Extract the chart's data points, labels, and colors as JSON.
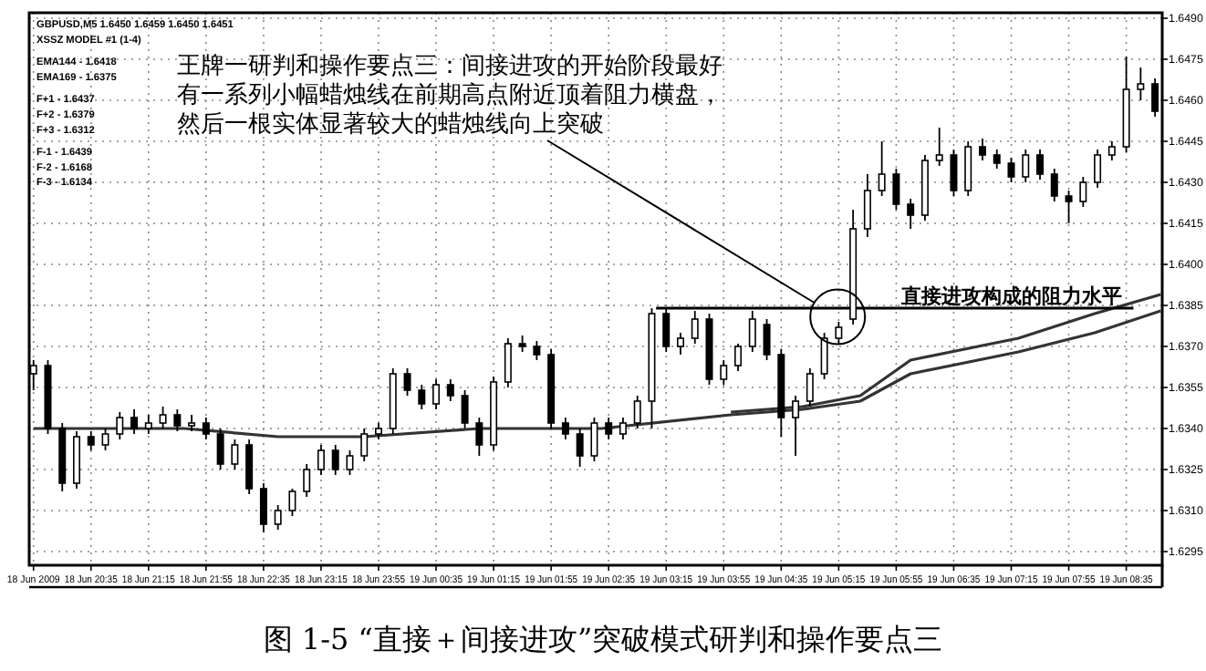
{
  "chart_data": {
    "type": "candlestick",
    "title": "图 1-5 “直接＋间接进攻”突破模式研判和操作要点三",
    "x": [
      "2009-06-18T19:55",
      "2009-06-18T20:05",
      "2009-06-18T20:15",
      "2009-06-18T20:25",
      "2009-06-18T20:35",
      "2009-06-18T20:45",
      "2009-06-18T20:55",
      "2009-06-18T21:05",
      "2009-06-18T21:15",
      "2009-06-18T21:25",
      "2009-06-18T21:35",
      "2009-06-18T21:45",
      "2009-06-18T21:55",
      "2009-06-18T22:05",
      "2009-06-18T22:15",
      "2009-06-18T22:25",
      "2009-06-18T22:35",
      "2009-06-18T22:45",
      "2009-06-18T22:55",
      "2009-06-18T23:05",
      "2009-06-18T23:15",
      "2009-06-18T23:25",
      "2009-06-18T23:35",
      "2009-06-18T23:45",
      "2009-06-18T23:55",
      "2009-06-19T00:05",
      "2009-06-19T00:15",
      "2009-06-19T00:25",
      "2009-06-19T00:35",
      "2009-06-19T00:45",
      "2009-06-19T00:55",
      "2009-06-19T01:05",
      "2009-06-19T01:15",
      "2009-06-19T01:25",
      "2009-06-19T01:35",
      "2009-06-19T01:45",
      "2009-06-19T01:55",
      "2009-06-19T02:05",
      "2009-06-19T02:15",
      "2009-06-19T02:25",
      "2009-06-19T02:35",
      "2009-06-19T02:45",
      "2009-06-19T02:55",
      "2009-06-19T03:05",
      "2009-06-19T03:15",
      "2009-06-19T03:25",
      "2009-06-19T03:35",
      "2009-06-19T03:45",
      "2009-06-19T03:55",
      "2009-06-19T04:05",
      "2009-06-19T04:15",
      "2009-06-19T04:25",
      "2009-06-19T04:35",
      "2009-06-19T04:45",
      "2009-06-19T04:55",
      "2009-06-19T05:05",
      "2009-06-19T05:15",
      "2009-06-19T05:25",
      "2009-06-19T05:35",
      "2009-06-19T05:45",
      "2009-06-19T05:55",
      "2009-06-19T06:05",
      "2009-06-19T06:15",
      "2009-06-19T06:25",
      "2009-06-19T06:35",
      "2009-06-19T06:45",
      "2009-06-19T06:55",
      "2009-06-19T07:05",
      "2009-06-19T07:15",
      "2009-06-19T07:25",
      "2009-06-19T07:35",
      "2009-06-19T07:45",
      "2009-06-19T07:55",
      "2009-06-19T08:05",
      "2009-06-19T08:15",
      "2009-06-19T08:25",
      "2009-06-19T08:35",
      "2009-06-19T08:45",
      "2009-06-19T08:55"
    ],
    "ohlc": [
      [
        1.636,
        1.6365,
        1.6354,
        1.6363
      ],
      [
        1.6363,
        1.6365,
        1.6338,
        1.634
      ],
      [
        1.634,
        1.6342,
        1.6317,
        1.632
      ],
      [
        1.632,
        1.6339,
        1.6318,
        1.6337
      ],
      [
        1.6337,
        1.6339,
        1.6332,
        1.6334
      ],
      [
        1.6334,
        1.634,
        1.6332,
        1.6338
      ],
      [
        1.6338,
        1.6346,
        1.6336,
        1.6344
      ],
      [
        1.6344,
        1.6347,
        1.6338,
        1.634
      ],
      [
        1.634,
        1.6345,
        1.6338,
        1.6342
      ],
      [
        1.6342,
        1.6348,
        1.634,
        1.6345
      ],
      [
        1.6345,
        1.6347,
        1.6339,
        1.6341
      ],
      [
        1.6341,
        1.6345,
        1.6339,
        1.6342
      ],
      [
        1.6342,
        1.6344,
        1.6336,
        1.6338
      ],
      [
        1.6338,
        1.634,
        1.6325,
        1.6327
      ],
      [
        1.6327,
        1.6336,
        1.6325,
        1.6334
      ],
      [
        1.6334,
        1.6336,
        1.6316,
        1.6318
      ],
      [
        1.6318,
        1.632,
        1.6302,
        1.6305
      ],
      [
        1.6305,
        1.6312,
        1.6303,
        1.631
      ],
      [
        1.631,
        1.6318,
        1.6308,
        1.6317
      ],
      [
        1.6317,
        1.6327,
        1.6315,
        1.6325
      ],
      [
        1.6325,
        1.6334,
        1.6323,
        1.6332
      ],
      [
        1.6332,
        1.6334,
        1.6323,
        1.6325
      ],
      [
        1.6325,
        1.6332,
        1.6323,
        1.633
      ],
      [
        1.633,
        1.634,
        1.6328,
        1.6338
      ],
      [
        1.6338,
        1.6342,
        1.6336,
        1.634
      ],
      [
        1.634,
        1.6362,
        1.6338,
        1.636
      ],
      [
        1.636,
        1.6362,
        1.6352,
        1.6354
      ],
      [
        1.6354,
        1.6356,
        1.6347,
        1.6349
      ],
      [
        1.6349,
        1.6358,
        1.6347,
        1.6356
      ],
      [
        1.6356,
        1.6358,
        1.635,
        1.6352
      ],
      [
        1.6352,
        1.6354,
        1.634,
        1.6342
      ],
      [
        1.6342,
        1.6344,
        1.633,
        1.6334
      ],
      [
        1.6334,
        1.6359,
        1.6332,
        1.6357
      ],
      [
        1.6357,
        1.6373,
        1.6355,
        1.6371
      ],
      [
        1.6371,
        1.6374,
        1.6368,
        1.637
      ],
      [
        1.637,
        1.6372,
        1.6365,
        1.6367
      ],
      [
        1.6367,
        1.6369,
        1.634,
        1.6342
      ],
      [
        1.6342,
        1.6344,
        1.6336,
        1.6338
      ],
      [
        1.6338,
        1.634,
        1.6326,
        1.633
      ],
      [
        1.633,
        1.6344,
        1.6328,
        1.6342
      ],
      [
        1.6342,
        1.6344,
        1.6336,
        1.6338
      ],
      [
        1.6338,
        1.6344,
        1.6336,
        1.6342
      ],
      [
        1.6342,
        1.6352,
        1.634,
        1.635
      ],
      [
        1.635,
        1.6384,
        1.634,
        1.6382
      ],
      [
        1.6382,
        1.6384,
        1.6368,
        1.637
      ],
      [
        1.637,
        1.6375,
        1.6367,
        1.6373
      ],
      [
        1.6373,
        1.6383,
        1.6371,
        1.638
      ],
      [
        1.638,
        1.6382,
        1.6356,
        1.6358
      ],
      [
        1.6358,
        1.6365,
        1.6356,
        1.6363
      ],
      [
        1.6363,
        1.6371,
        1.6361,
        1.637
      ],
      [
        1.637,
        1.6383,
        1.6368,
        1.638
      ],
      [
        1.6378,
        1.638,
        1.6365,
        1.6367
      ],
      [
        1.6367,
        1.6369,
        1.6337,
        1.6344
      ],
      [
        1.6344,
        1.6352,
        1.633,
        1.635
      ],
      [
        1.635,
        1.6362,
        1.6348,
        1.636
      ],
      [
        1.636,
        1.6375,
        1.6358,
        1.6373
      ],
      [
        1.6373,
        1.6379,
        1.6371,
        1.6377
      ],
      [
        1.638,
        1.642,
        1.6378,
        1.6413
      ],
      [
        1.6413,
        1.6433,
        1.641,
        1.6427
      ],
      [
        1.6427,
        1.6445,
        1.6425,
        1.6433
      ],
      [
        1.6433,
        1.6435,
        1.642,
        1.6422
      ],
      [
        1.6422,
        1.6424,
        1.6413,
        1.6418
      ],
      [
        1.6418,
        1.644,
        1.6416,
        1.6438
      ],
      [
        1.6438,
        1.645,
        1.6436,
        1.644
      ],
      [
        1.644,
        1.6442,
        1.6425,
        1.6427
      ],
      [
        1.6427,
        1.6445,
        1.6425,
        1.6443
      ],
      [
        1.6443,
        1.6446,
        1.6438,
        1.644
      ],
      [
        1.644,
        1.6442,
        1.6435,
        1.6437
      ],
      [
        1.6437,
        1.6439,
        1.643,
        1.6432
      ],
      [
        1.6432,
        1.6442,
        1.643,
        1.644
      ],
      [
        1.644,
        1.6442,
        1.6431,
        1.6433
      ],
      [
        1.6433,
        1.6435,
        1.6423,
        1.6425
      ],
      [
        1.6425,
        1.6427,
        1.6415,
        1.6423
      ],
      [
        1.6423,
        1.6432,
        1.6421,
        1.643
      ],
      [
        1.643,
        1.6442,
        1.6428,
        1.644
      ],
      [
        1.644,
        1.6445,
        1.6438,
        1.6443
      ],
      [
        1.6443,
        1.6476,
        1.6441,
        1.6464
      ],
      [
        1.6464,
        1.6472,
        1.646,
        1.6466
      ],
      [
        1.6466,
        1.6468,
        1.6454,
        1.6456
      ]
    ],
    "series": [
      {
        "type": "line",
        "color": "#333333",
        "x": [
          "2009-06-18T19:55",
          "2009-06-18T21:40",
          "2009-06-18T22:45",
          "2009-06-18T23:45",
          "2009-06-19T01:05",
          "2009-06-19T02:30",
          "2009-06-19T04:00",
          "2009-06-19T04:50",
          "2009-06-19T05:30",
          "2009-06-19T06:05",
          "2009-06-19T07:20",
          "2009-06-19T08:13",
          "2009-06-19T08:59"
        ],
        "values": [
          1.634,
          1.634,
          1.6337,
          1.6337,
          1.634,
          1.634,
          1.6345,
          1.6347,
          1.635,
          1.636,
          1.6368,
          1.6375,
          1.6383
        ]
      },
      {
        "type": "line",
        "color": "#333333",
        "x": [
          "2009-06-19T04:00",
          "2009-06-19T04:50",
          "2009-06-19T05:30",
          "2009-06-19T06:05",
          "2009-06-19T07:20",
          "2009-06-19T08:13",
          "2009-06-19T08:59"
        ],
        "values": [
          1.6346,
          1.6348,
          1.6352,
          1.6365,
          1.6373,
          1.6382,
          1.6389
        ]
      },
      {
        "type": "line",
        "color": "#000000",
        "x": [
          "2009-06-19T03:08",
          "2009-06-19T08:40"
        ],
        "values": [
          1.6384,
          1.6384
        ]
      }
    ],
    "xlim": [
      "2009-06-18T19:52",
      "2009-06-19T09:00"
    ],
    "xticks": [
      {
        "value": "2009-06-18T19:55",
        "label": "18 Jun 2009"
      },
      {
        "value": "2009-06-18T20:35",
        "label": "18 Jun 20:35"
      },
      {
        "value": "2009-06-18T21:15",
        "label": "18 Jun 21:15"
      },
      {
        "value": "2009-06-18T21:55",
        "label": "18 Jun 21:55"
      },
      {
        "value": "2009-06-18T22:35",
        "label": "18 Jun 22:35"
      },
      {
        "value": "2009-06-18T23:15",
        "label": "18 Jun 23:15"
      },
      {
        "value": "2009-06-18T23:55",
        "label": "18 Jun 23:55"
      },
      {
        "value": "2009-06-19T00:35",
        "label": "19 Jun 00:35"
      },
      {
        "value": "2009-06-19T01:15",
        "label": "19 Jun 01:15"
      },
      {
        "value": "2009-06-19T01:55",
        "label": "19 Jun 01:55"
      },
      {
        "value": "2009-06-19T02:35",
        "label": "19 Jun 02:35"
      },
      {
        "value": "2009-06-19T03:15",
        "label": "19 Jun 03:15"
      },
      {
        "value": "2009-06-19T03:55",
        "label": "19 Jun 03:55"
      },
      {
        "value": "2009-06-19T04:35",
        "label": "19 Jun 04:35"
      },
      {
        "value": "2009-06-19T05:15",
        "label": "19 Jun 05:15"
      },
      {
        "value": "2009-06-19T05:55",
        "label": "19 Jun 05:55"
      },
      {
        "value": "2009-06-19T06:35",
        "label": "19 Jun 06:35"
      },
      {
        "value": "2009-06-19T07:15",
        "label": "19 Jun 07:15"
      },
      {
        "value": "2009-06-19T07:55",
        "label": "19 Jun 07:55"
      },
      {
        "value": "2009-06-19T08:35",
        "label": "19 Jun 08:35"
      }
    ],
    "ylim": [
      1.629,
      1.6492
    ],
    "yticks": [
      {
        "value": 1.6295,
        "label": "1.6295"
      },
      {
        "value": 1.631,
        "label": "1.6310"
      },
      {
        "value": 1.6325,
        "label": "1.6325"
      },
      {
        "value": 1.634,
        "label": "1.6340"
      },
      {
        "value": 1.6355,
        "label": "1.6355"
      },
      {
        "value": 1.637,
        "label": "1.6370"
      },
      {
        "value": 1.6385,
        "label": "1.6385"
      },
      {
        "value": 1.64,
        "label": "1.6400"
      },
      {
        "value": 1.6415,
        "label": "1.6415"
      },
      {
        "value": 1.643,
        "label": "1.6430"
      },
      {
        "value": 1.6445,
        "label": "1.6445"
      },
      {
        "value": 1.646,
        "label": "1.6460"
      },
      {
        "value": 1.6475,
        "label": "1.6475"
      },
      {
        "value": 1.649,
        "label": "1.6490"
      }
    ],
    "grid": true,
    "annotations": [
      "GBPUSD,M5  1.6450 1.6459 1.6450 1.6451",
      "XSSZ MODEL #1 (1-4)",
      "EMA144 - 1.6418",
      "EMA169 - 1.6375",
      "F+1 - 1.6437",
      "F+2 - 1.6379",
      "F+3 - 1.6312",
      "F-1 - 1.6439",
      "F-2 - 1.6168",
      "F-3 - 1.6134",
      {
        "text": "王牌一研判和操作要点三：间接进攻的开始阶段最好有一系列小幅蜡烛线在前期高点附近顶着阻力横盘，然后一根实体显著较大的蜡烛线向上突破",
        "x": "2009-06-19T04:58",
        "y": 1.6386
      },
      {
        "text": "直接进攻构成的阻力水平",
        "x": "2009-06-19T07:15",
        "y": 1.6384
      }
    ]
  }
}
